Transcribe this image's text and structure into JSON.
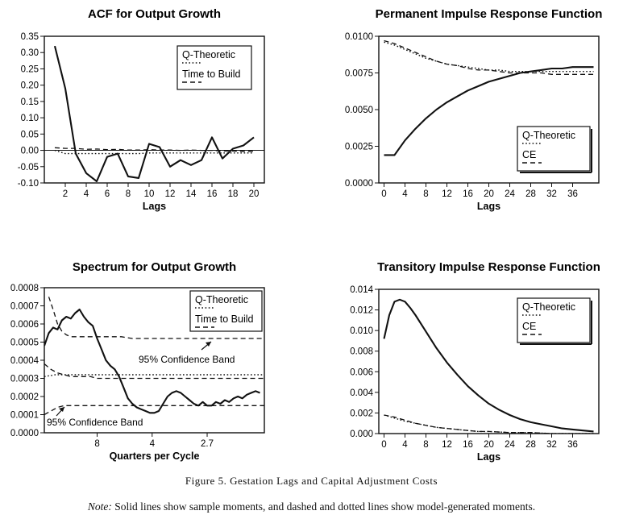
{
  "figure": {
    "caption": "Figure 5. Gestation Lags and Capital Adjustment Costs",
    "note_label": "Note:",
    "note_text": "Solid lines show sample moments, and dashed and dotted lines show model-generated moments."
  },
  "chart_data": [
    {
      "id": "acf",
      "type": "line",
      "title": "ACF for Output Growth",
      "xlabel": "Lags",
      "ylabel": "",
      "xlim": [
        0,
        21
      ],
      "ylim": [
        -0.1,
        0.35
      ],
      "xticks": [
        "2",
        "4",
        "6",
        "8",
        "10",
        "12",
        "14",
        "16",
        "18",
        "20"
      ],
      "xtick_values": [
        2,
        4,
        6,
        8,
        10,
        12,
        14,
        16,
        18,
        20
      ],
      "yticks": [
        "-0.10",
        "-0.05",
        "0.00",
        "0.05",
        "0.10",
        "0.15",
        "0.20",
        "0.25",
        "0.30",
        "0.35"
      ],
      "ytick_values": [
        -0.1,
        -0.05,
        0,
        0.05,
        0.1,
        0.15,
        0.2,
        0.25,
        0.3,
        0.35
      ],
      "zero_line": true,
      "legend": [
        "Q-Theoretic",
        "Time to Build"
      ],
      "series": [
        {
          "style": "solid",
          "x": [
            1,
            2,
            3,
            4,
            5,
            6,
            7,
            8,
            9,
            10,
            11,
            12,
            13,
            14,
            15,
            16,
            17,
            18,
            19,
            20
          ],
          "values": [
            0.32,
            0.19,
            -0.01,
            -0.07,
            -0.095,
            -0.02,
            -0.01,
            -0.08,
            -0.085,
            0.02,
            0.01,
            -0.05,
            -0.03,
            -0.045,
            -0.03,
            0.04,
            -0.025,
            0.005,
            0.015,
            0.04
          ]
        },
        {
          "name": "Q-Theoretic",
          "style": "dotted",
          "x": [
            1,
            2,
            3,
            4,
            5,
            6,
            7,
            8,
            9,
            10,
            11,
            12,
            13,
            14,
            15,
            16,
            17,
            18,
            19,
            20
          ],
          "values": [
            0.0,
            -0.01,
            -0.01,
            -0.01,
            -0.01,
            -0.01,
            -0.01,
            -0.01,
            -0.01,
            -0.008,
            -0.008,
            -0.008,
            -0.008,
            -0.008,
            -0.008,
            -0.008,
            -0.008,
            -0.008,
            -0.008,
            -0.008
          ]
        },
        {
          "name": "Time to Build",
          "style": "dashed",
          "x": [
            1,
            2,
            3,
            4,
            5,
            6,
            7,
            8,
            9,
            10,
            11,
            12,
            13,
            14,
            15,
            16,
            17,
            18,
            19,
            20
          ],
          "values": [
            0.008,
            0.006,
            0.006,
            0.003,
            0.004,
            0.002,
            0.003,
            0.001,
            0.001,
            0.002,
            0.001,
            0.001,
            0.0,
            0.001,
            0.0,
            0.0,
            -0.002,
            -0.002,
            -0.003,
            -0.003
          ]
        }
      ]
    },
    {
      "id": "perm",
      "type": "line",
      "title": "Permanent Impulse Response Function",
      "xlabel": "Lags",
      "ylabel": "",
      "xlim": [
        -1,
        41
      ],
      "ylim": [
        0,
        0.01
      ],
      "xticks": [
        "0",
        "4",
        "8",
        "12",
        "16",
        "20",
        "24",
        "28",
        "32",
        "36"
      ],
      "xtick_values": [
        0,
        4,
        8,
        12,
        16,
        20,
        24,
        28,
        32,
        36
      ],
      "yticks": [
        "0.0000",
        "0.0025",
        "0.0050",
        "0.0075",
        "0.0100"
      ],
      "ytick_values": [
        0,
        0.0025,
        0.005,
        0.0075,
        0.01
      ],
      "legend": [
        "Q-Theoretic",
        "CE"
      ],
      "series": [
        {
          "style": "solid",
          "x": [
            0,
            2,
            4,
            6,
            8,
            10,
            12,
            14,
            16,
            18,
            20,
            22,
            24,
            26,
            28,
            30,
            32,
            34,
            36,
            38,
            40
          ],
          "values": [
            0.0019,
            0.0019,
            0.0029,
            0.0037,
            0.0044,
            0.005,
            0.0055,
            0.0059,
            0.0063,
            0.0066,
            0.0069,
            0.0071,
            0.0073,
            0.0075,
            0.0076,
            0.0077,
            0.0078,
            0.0078,
            0.0079,
            0.0079,
            0.0079
          ]
        },
        {
          "name": "Q-Theoretic",
          "style": "dotted",
          "x": [
            0,
            2,
            4,
            6,
            8,
            10,
            12,
            14,
            16,
            18,
            20,
            22,
            24,
            26,
            28,
            30,
            32,
            34,
            36,
            38,
            40
          ],
          "values": [
            0.0096,
            0.0094,
            0.0091,
            0.0088,
            0.0085,
            0.0083,
            0.0081,
            0.008,
            0.0079,
            0.0078,
            0.0077,
            0.0077,
            0.0076,
            0.0076,
            0.0076,
            0.0076,
            0.0076,
            0.0076,
            0.0076,
            0.0076,
            0.0076
          ]
        },
        {
          "name": "CE",
          "style": "dashed",
          "x": [
            0,
            2,
            4,
            6,
            8,
            10,
            12,
            14,
            16,
            18,
            20,
            22,
            24,
            26,
            28,
            30,
            32,
            34,
            36,
            38,
            40
          ],
          "values": [
            0.0097,
            0.0095,
            0.0092,
            0.0089,
            0.0086,
            0.0083,
            0.0081,
            0.008,
            0.0078,
            0.0077,
            0.0077,
            0.0076,
            0.0075,
            0.0075,
            0.0075,
            0.0075,
            0.0074,
            0.0074,
            0.0074,
            0.0074,
            0.0074
          ]
        }
      ]
    },
    {
      "id": "spec",
      "type": "line",
      "title": "Spectrum for Output Growth",
      "xlabel": "Quarters per Cycle",
      "ylabel": "",
      "xlim": [
        0,
        100
      ],
      "ylim": [
        0,
        0.0008
      ],
      "xticks": [
        "8",
        "4",
        "2.7"
      ],
      "xtick_values": [
        24,
        49,
        74
      ],
      "yticks": [
        "0.0000",
        "0.0001",
        "0.0002",
        "0.0003",
        "0.0004",
        "0.0005",
        "0.0006",
        "0.0007",
        "0.0008"
      ],
      "ytick_values": [
        0,
        0.0001,
        0.0002,
        0.0003,
        0.0004,
        0.0005,
        0.0006,
        0.0007,
        0.0008
      ],
      "legend": [
        "Q-Theoretic",
        "Time to Build"
      ],
      "annotations": [
        "95% Confidence Band",
        "95% Confidence Band"
      ],
      "series": [
        {
          "style": "solid",
          "x": [
            0,
            2,
            4,
            6,
            8,
            10,
            12,
            14,
            16,
            18,
            20,
            22,
            24,
            26,
            28,
            30,
            32,
            34,
            36,
            38,
            40,
            42,
            44,
            46,
            48,
            50,
            52,
            54,
            56,
            58,
            60,
            62,
            64,
            66,
            68,
            70,
            72,
            74,
            76,
            78,
            80,
            82,
            84,
            86,
            88,
            90,
            92,
            94,
            96,
            98
          ],
          "values": [
            0.00048,
            0.00055,
            0.00058,
            0.00057,
            0.00062,
            0.00064,
            0.00063,
            0.00066,
            0.00068,
            0.00064,
            0.00061,
            0.00059,
            0.00052,
            0.00046,
            0.0004,
            0.00037,
            0.00035,
            0.00031,
            0.00025,
            0.00019,
            0.00016,
            0.00014,
            0.00013,
            0.00012,
            0.00011,
            0.00011,
            0.00012,
            0.00016,
            0.0002,
            0.00022,
            0.00023,
            0.00022,
            0.0002,
            0.00018,
            0.00016,
            0.00015,
            0.00017,
            0.00015,
            0.00015,
            0.00017,
            0.00016,
            0.00018,
            0.00017,
            0.00019,
            0.0002,
            0.00019,
            0.00021,
            0.00022,
            0.00023,
            0.00022
          ]
        },
        {
          "name": "Q-Theoretic",
          "style": "dotted",
          "x": [
            0,
            5,
            10,
            15,
            20,
            25,
            30,
            35,
            40,
            45,
            50,
            55,
            60,
            65,
            70,
            75,
            80,
            85,
            90,
            95,
            100
          ],
          "values": [
            0.00031,
            0.00032,
            0.00032,
            0.00032,
            0.00032,
            0.00032,
            0.00032,
            0.00032,
            0.00032,
            0.00032,
            0.00032,
            0.00032,
            0.00032,
            0.00032,
            0.00032,
            0.00032,
            0.00032,
            0.00032,
            0.00032,
            0.00032,
            0.00032
          ]
        },
        {
          "name": "Time to Build",
          "style": "dashed",
          "x": [
            0,
            3,
            6,
            9,
            12,
            15,
            18,
            21,
            24,
            27,
            30,
            35,
            40,
            45,
            50,
            55,
            60,
            65,
            70,
            75,
            80,
            85,
            90,
            95,
            100
          ],
          "values": [
            0.00038,
            0.00035,
            0.00033,
            0.00032,
            0.00031,
            0.00031,
            0.00031,
            0.00031,
            0.0003,
            0.0003,
            0.0003,
            0.0003,
            0.0003,
            0.0003,
            0.0003,
            0.0003,
            0.0003,
            0.0003,
            0.0003,
            0.0003,
            0.0003,
            0.0003,
            0.0003,
            0.0003,
            0.0003
          ]
        },
        {
          "name": "95% Confidence Band",
          "style": "dashed",
          "x": [
            2,
            4,
            6,
            8,
            10,
            12,
            15,
            20,
            25,
            30,
            35,
            40,
            45,
            50,
            55,
            60,
            65,
            70,
            75,
            80,
            85,
            90,
            95,
            100
          ],
          "values": [
            0.00075,
            0.00068,
            0.0006,
            0.00056,
            0.00054,
            0.00053,
            0.00053,
            0.00053,
            0.00053,
            0.00053,
            0.00053,
            0.00052,
            0.00052,
            0.00052,
            0.00052,
            0.00052,
            0.00052,
            0.00052,
            0.00052,
            0.00052,
            0.00052,
            0.00052,
            0.00052,
            0.00052
          ]
        },
        {
          "name": "95% Confidence Band",
          "style": "dashed",
          "x": [
            0,
            3,
            6,
            9,
            12,
            15,
            20,
            25,
            30,
            35,
            40,
            45,
            50,
            55,
            60,
            65,
            70,
            75,
            80,
            85,
            90,
            95,
            100
          ],
          "values": [
            0.0001,
            0.00012,
            0.00014,
            0.00015,
            0.00015,
            0.00015,
            0.00015,
            0.00015,
            0.00015,
            0.00015,
            0.00015,
            0.00015,
            0.00015,
            0.00015,
            0.00015,
            0.00015,
            0.00015,
            0.00015,
            0.00015,
            0.00015,
            0.00015,
            0.00015,
            0.00015
          ]
        }
      ]
    },
    {
      "id": "trans",
      "type": "line",
      "title": "Transitory Impulse Response Function",
      "xlabel": "Lags",
      "ylabel": "",
      "xlim": [
        -1,
        41
      ],
      "ylim": [
        0,
        0.014
      ],
      "xticks": [
        "0",
        "4",
        "8",
        "12",
        "16",
        "20",
        "24",
        "28",
        "32",
        "36"
      ],
      "xtick_values": [
        0,
        4,
        8,
        12,
        16,
        20,
        24,
        28,
        32,
        36
      ],
      "yticks": [
        "0.000",
        "0.002",
        "0.004",
        "0.006",
        "0.008",
        "0.010",
        "0.012",
        "0.014"
      ],
      "ytick_values": [
        0,
        0.002,
        0.004,
        0.006,
        0.008,
        0.01,
        0.012,
        0.014
      ],
      "legend": [
        "Q-Theoretic",
        "CE"
      ],
      "series": [
        {
          "style": "solid",
          "x": [
            0,
            1,
            2,
            3,
            4,
            5,
            6,
            8,
            10,
            12,
            14,
            16,
            18,
            20,
            22,
            24,
            26,
            28,
            30,
            32,
            34,
            36,
            38,
            40
          ],
          "values": [
            0.0092,
            0.0115,
            0.0128,
            0.013,
            0.0128,
            0.0122,
            0.0115,
            0.0099,
            0.0083,
            0.0069,
            0.0057,
            0.0046,
            0.0037,
            0.0029,
            0.0023,
            0.0018,
            0.0014,
            0.0011,
            0.0009,
            0.0007,
            0.0005,
            0.0004,
            0.0003,
            0.0002
          ]
        },
        {
          "name": "Q-Theoretic",
          "style": "dotted",
          "x": [
            0,
            2,
            4,
            6,
            8,
            10,
            12,
            14,
            16,
            18,
            20,
            24,
            28,
            32,
            36,
            40
          ],
          "values": [
            0.0018,
            0.0015,
            0.0012,
            0.001,
            0.0008,
            0.0006,
            0.0005,
            0.0004,
            0.0003,
            0.0002,
            0.0002,
            0.0001,
            0.0001,
            0.0,
            0.0,
            0.0
          ]
        },
        {
          "name": "CE",
          "style": "dashed",
          "x": [
            0,
            2,
            4,
            6,
            8,
            10,
            12,
            14,
            16,
            18,
            20,
            24,
            28,
            32,
            36,
            40
          ],
          "values": [
            0.0018,
            0.0016,
            0.0013,
            0.001,
            0.0008,
            0.0006,
            0.0005,
            0.0004,
            0.0003,
            0.0002,
            0.0002,
            0.0001,
            0.0001,
            0.0,
            0.0,
            0.0
          ]
        }
      ]
    }
  ]
}
